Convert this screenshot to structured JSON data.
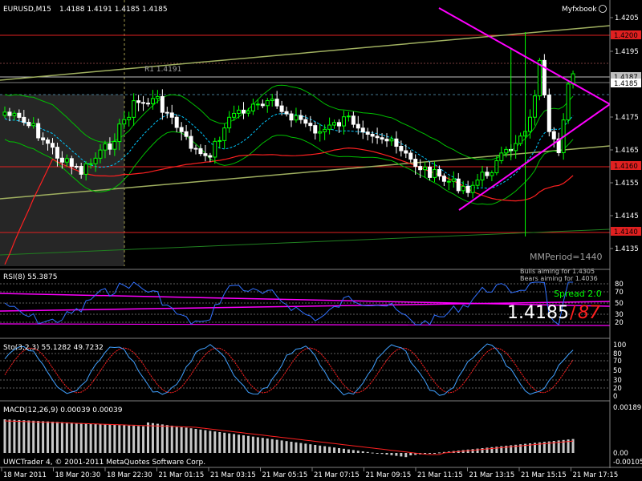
{
  "window": {
    "symbol_header": "EURUSD,M15",
    "ohlc": "1.4188 1.4191 1.4185 1.4185",
    "watermark": "Myfxbook",
    "copyright": "UWCTrader 4, © 2001-2011 MetaQuotes Software Corp."
  },
  "main_chart": {
    "price_ticks": [
      "1.4205",
      "1.4195",
      "1.4175",
      "1.4165",
      "1.4155",
      "1.4145",
      "1.4135"
    ],
    "pivot_label": "R1   1.4191",
    "mm_period": "MMPeriod=1440",
    "price_tags": [
      {
        "text": "1.4200",
        "bg": "#e02020"
      },
      {
        "text": "1.4187",
        "bg": "#c0c0c0"
      },
      {
        "text": "1.4185",
        "bg": "#ffffff"
      },
      {
        "text": "1.4160",
        "bg": "#e02020"
      },
      {
        "text": "1.4140",
        "bg": "#e02020"
      }
    ],
    "colors": {
      "bull": "#00ff00",
      "bear": "#ffffff",
      "triangle": "#ff00ff",
      "channel": "#a0b060",
      "ma_red": "#ff2020",
      "band": "#00c000",
      "ma_dash": "#00c8ff"
    }
  },
  "rsi": {
    "label": "RSI(8) 55.3875",
    "bulls_text": "Bulls aiming for 1.4305",
    "bears_text": "Bears aiming for 1.4036",
    "spread_text": "Spread 2.0",
    "big_price": "1.4185",
    "big_sep": "/",
    "big_pips": "87",
    "ticks": [
      "80",
      "70",
      "50",
      "30",
      "20"
    ]
  },
  "stoch": {
    "label": "Sto(3,2,3) 55.1282 49.7232",
    "ticks": [
      "100",
      "80",
      "70",
      "50",
      "30",
      "20",
      "0"
    ]
  },
  "macd": {
    "label": "MACD(12,26,9) 0.00039 0.00039",
    "ticks": [
      "0.00189",
      "0.00",
      "-0.00105"
    ]
  },
  "time_axis": [
    "18 Mar 2011",
    "18 Mar 20:30",
    "18 Mar 22:30",
    "21 Mar 01:15",
    "21 Mar 03:15",
    "21 Mar 05:15",
    "21 Mar 07:15",
    "21 Mar 09:15",
    "21 Mar 11:15",
    "21 Mar 13:15",
    "21 Mar 15:15",
    "21 Mar 17:15"
  ]
}
